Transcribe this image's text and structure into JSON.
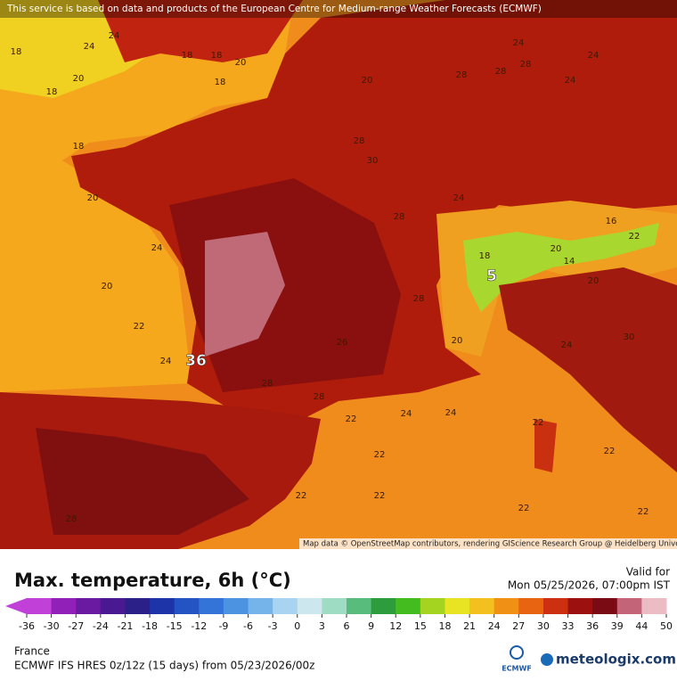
{
  "header": {
    "notice": "This service is based on data and products of the European Centre for Medium-range Weather Forecasts (ECMWF)"
  },
  "map": {
    "attribution": "Map data © OpenStreetMap contributors, rendering GIScience Research Group @ Heidelberg University",
    "labels": [
      24,
      24,
      20,
      18,
      18,
      18,
      20,
      18,
      18,
      24,
      28,
      28,
      24,
      24,
      28,
      20,
      18,
      20,
      20,
      24,
      22,
      28,
      30,
      28,
      28,
      24,
      28,
      28,
      26,
      24,
      16,
      22,
      18,
      20,
      20,
      14,
      20,
      22,
      24,
      24,
      22,
      22,
      22,
      22,
      22,
      24,
      30,
      28,
      22,
      22,
      36,
      5
    ],
    "highlight": [
      50,
      51
    ]
  },
  "legend": {
    "title": "Max. temperature, 6h (°C)",
    "ticks": [
      -36,
      -30,
      -27,
      -24,
      -21,
      -18,
      -15,
      -12,
      -9,
      -6,
      -3,
      0,
      3,
      6,
      9,
      12,
      15,
      18,
      21,
      24,
      27,
      30,
      33,
      36,
      39,
      44,
      50
    ],
    "colors": [
      "#c040d8",
      "#9020b8",
      "#6a1aa0",
      "#4a1890",
      "#2a2088",
      "#1c34a8",
      "#2454c4",
      "#3474d8",
      "#4c94e2",
      "#74b4ea",
      "#a8d4f2",
      "#cce8ee",
      "#9edcc4",
      "#58bc7c",
      "#2c9c3c",
      "#44bc20",
      "#a4d420",
      "#e8e424",
      "#f4c020",
      "#f09014",
      "#e86410",
      "#cc3010",
      "#9c1010",
      "#7a0a14",
      "#c46478",
      "#ecbcc4"
    ]
  },
  "valid": {
    "label": "Valid for",
    "time": "Mon 05/25/2026, 07:00pm IST"
  },
  "footer": {
    "region": "France",
    "model": "ECMWF IFS HRES 0z/12z (15 days) from 05/23/2026/00z",
    "ecmwf": "ECMWF",
    "brand": "meteologix.com"
  }
}
